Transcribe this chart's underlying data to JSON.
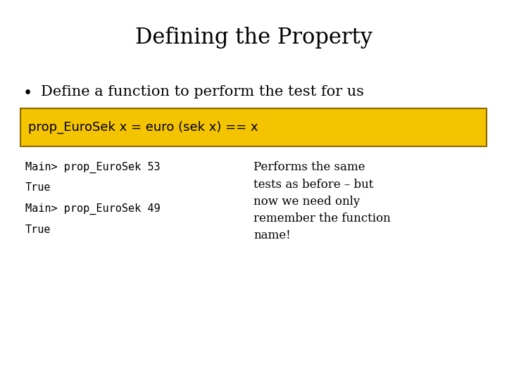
{
  "title": "Defining the Property",
  "bullet": "Define a function to perform the test for us",
  "code_box_text": "prop_EuroSek x = euro (sek x) == x",
  "code_box_bg": "#F5C400",
  "code_box_border": "#8B6800",
  "terminal_lines": [
    "Main> prop_EuroSek 53",
    "True",
    "Main> prop_EuroSek 49",
    "True"
  ],
  "comment_text": "Performs the same\ntests as before – but\nnow we need only\nremember the function\nname!",
  "bg_color": "#ffffff",
  "title_fontsize": 22,
  "bullet_fontsize": 15,
  "code_fontsize": 13,
  "terminal_fontsize": 11,
  "comment_fontsize": 12
}
